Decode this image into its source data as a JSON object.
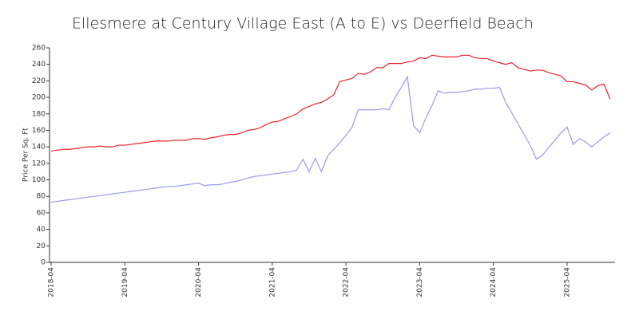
{
  "chart_data": {
    "type": "line",
    "title": "Ellesmere at Century Village East (A to E) vs Deerfield Beach",
    "y_label": "Price Per Sq. Ft",
    "x": [
      "2018-04",
      "2018-05",
      "2018-06",
      "2018-07",
      "2018-08",
      "2018-09",
      "2018-10",
      "2018-11",
      "2018-12",
      "2019-01",
      "2019-02",
      "2019-03",
      "2019-04",
      "2019-05",
      "2019-06",
      "2019-07",
      "2019-08",
      "2019-09",
      "2019-10",
      "2019-11",
      "2019-12",
      "2020-01",
      "2020-02",
      "2020-03",
      "2020-04",
      "2020-05",
      "2020-06",
      "2020-07",
      "2020-08",
      "2020-09",
      "2020-10",
      "2020-11",
      "2020-12",
      "2021-01",
      "2021-02",
      "2021-03",
      "2021-04",
      "2021-05",
      "2021-06",
      "2021-07",
      "2021-08",
      "2021-09",
      "2021-10",
      "2021-11",
      "2021-12",
      "2022-01",
      "2022-02",
      "2022-03",
      "2022-04",
      "2022-05",
      "2022-06",
      "2022-07",
      "2022-08",
      "2022-09",
      "2022-10",
      "2022-11",
      "2022-12",
      "2023-01",
      "2023-02",
      "2023-03",
      "2023-04",
      "2023-05",
      "2023-06",
      "2023-07",
      "2023-08",
      "2023-09",
      "2023-10",
      "2023-11",
      "2023-12",
      "2024-01",
      "2024-02",
      "2024-03",
      "2024-04",
      "2024-05",
      "2024-06",
      "2024-07",
      "2024-08",
      "2024-09",
      "2024-10",
      "2024-11",
      "2024-12",
      "2025-01",
      "2025-02",
      "2025-03",
      "2025-04",
      "2025-05",
      "2025-06",
      "2025-07",
      "2025-08",
      "2025-09",
      "2025-10",
      "2025-11"
    ],
    "series": [
      {
        "color": "#e8232b",
        "values": [
          135,
          136,
          137,
          137,
          138,
          139,
          140,
          140,
          141,
          140,
          140,
          142,
          142,
          143,
          144,
          145,
          146,
          147,
          147,
          147,
          148,
          148,
          148,
          150,
          150,
          149,
          151,
          152,
          154,
          155,
          155,
          157,
          160,
          161,
          163,
          167,
          170,
          171,
          174,
          177,
          180,
          186,
          189,
          192,
          194,
          198,
          203,
          219,
          221,
          223,
          229,
          228,
          231,
          236,
          236,
          241,
          241,
          241,
          243,
          244,
          248,
          247,
          251,
          250,
          249,
          249,
          249,
          251,
          251,
          248,
          247,
          247,
          244,
          242,
          240,
          242,
          236,
          234,
          232,
          233,
          233,
          230,
          228,
          226,
          219,
          219,
          217,
          215,
          209,
          214,
          216,
          198
        ]
      },
      {
        "color": "#9a9aee",
        "values": [
          73,
          74,
          75,
          76,
          77,
          78,
          79,
          80,
          81,
          82,
          83,
          84,
          85,
          86,
          87,
          88,
          89,
          90,
          91,
          92,
          92,
          93,
          94,
          95,
          96,
          93,
          94,
          94,
          95,
          97,
          98,
          100,
          102,
          104,
          105,
          106,
          107,
          108,
          109,
          110,
          112,
          125,
          110,
          126,
          110,
          129,
          137,
          145,
          154,
          164,
          185,
          185,
          185,
          185,
          186,
          185,
          200,
          212,
          225,
          166,
          157,
          175,
          190,
          208,
          205,
          206,
          206,
          207,
          208,
          210,
          210,
          211,
          211,
          212,
          194,
          181,
          168,
          155,
          142,
          125,
          130,
          139,
          148,
          157,
          164,
          143,
          150,
          146,
          140,
          146,
          152,
          157
        ]
      }
    ],
    "xticks": [
      "2018-04",
      "2019-04",
      "2020-04",
      "2021-04",
      "2022-04",
      "2023-04",
      "2024-04",
      "2025-04"
    ],
    "ylim": [
      0,
      260
    ],
    "yticks": [
      0,
      20,
      40,
      60,
      80,
      100,
      120,
      140,
      160,
      180,
      200,
      220,
      240,
      260
    ]
  }
}
